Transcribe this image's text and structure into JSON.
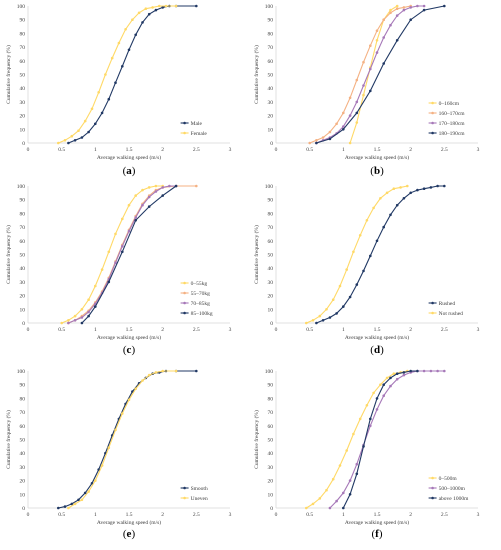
{
  "figure": {
    "panels": [
      {
        "label_prefix": "(",
        "label_letter": "a",
        "label_suffix": ")"
      },
      {
        "label_prefix": "(",
        "label_letter": "b",
        "label_suffix": ")"
      },
      {
        "label_prefix": "(",
        "label_letter": "c",
        "label_suffix": ")"
      },
      {
        "label_prefix": "(",
        "label_letter": "d",
        "label_suffix": ")"
      },
      {
        "label_prefix": "(",
        "label_letter": "e",
        "label_suffix": ")"
      },
      {
        "label_prefix": "(",
        "label_letter": "f",
        "label_suffix": ")"
      }
    ],
    "colors": {
      "navy": "#203864",
      "yellow": "#FFD966",
      "orange": "#F4B183",
      "purple": "#A678B8",
      "axis": "#d9d9d9",
      "text": "#404040"
    }
  },
  "chart_data": [
    {
      "type": "line",
      "xlabel": "Average walking speed (m/s)",
      "ylabel": "Cumulative frequency (%)",
      "xlim": [
        0,
        3
      ],
      "ylim": [
        0,
        100
      ],
      "xticks": [
        "0",
        "0.5",
        "1",
        "1.5",
        "2",
        "2.5",
        "3"
      ],
      "yticks": [
        "0",
        "10",
        "20",
        "30",
        "40",
        "50",
        "60",
        "70",
        "80",
        "90",
        "100"
      ],
      "legend_position": "bottom-right",
      "series": [
        {
          "name": "Male",
          "color": "#203864",
          "x": [
            0.6,
            0.7,
            0.8,
            0.9,
            1.0,
            1.1,
            1.2,
            1.3,
            1.4,
            1.5,
            1.6,
            1.7,
            1.8,
            1.9,
            2.0,
            2.1,
            2.2,
            2.5
          ],
          "y": [
            0,
            2,
            4,
            8,
            14,
            22,
            32,
            44,
            56,
            68,
            79,
            88,
            94,
            97,
            99,
            100,
            100,
            100
          ]
        },
        {
          "name": "Female",
          "color": "#FFD966",
          "x": [
            0.45,
            0.55,
            0.65,
            0.75,
            0.85,
            0.95,
            1.05,
            1.15,
            1.25,
            1.35,
            1.45,
            1.55,
            1.65,
            1.75,
            1.85,
            1.95,
            2.05,
            2.2
          ],
          "y": [
            0,
            2,
            5,
            9,
            16,
            25,
            37,
            50,
            62,
            73,
            83,
            90,
            95,
            98,
            99,
            100,
            100,
            100
          ]
        }
      ]
    },
    {
      "type": "line",
      "xlabel": "Average walking speed (m/s)",
      "ylabel": "Cumulative frequency (%)",
      "xlim": [
        0,
        3
      ],
      "ylim": [
        0,
        100
      ],
      "xticks": [
        "0",
        "0.5",
        "1",
        "1.5",
        "2",
        "2.5",
        "3"
      ],
      "yticks": [
        "0",
        "10",
        "20",
        "30",
        "40",
        "50",
        "60",
        "70",
        "80",
        "90",
        "100"
      ],
      "legend_position": "bottom-right",
      "series": [
        {
          "name": "0–160cm",
          "color": "#FFD966",
          "x": [
            1.1,
            1.2,
            1.3,
            1.4,
            1.5,
            1.6,
            1.7,
            1.8
          ],
          "y": [
            0,
            15,
            35,
            55,
            75,
            90,
            97,
            100
          ]
        },
        {
          "name": "160–170cm",
          "color": "#F4B183",
          "x": [
            0.5,
            0.6,
            0.7,
            0.8,
            0.9,
            1.0,
            1.1,
            1.2,
            1.3,
            1.4,
            1.5,
            1.6,
            1.7,
            1.8,
            1.9,
            2.0
          ],
          "y": [
            0,
            2,
            4,
            8,
            14,
            22,
            33,
            46,
            59,
            71,
            82,
            90,
            95,
            98,
            99,
            100
          ]
        },
        {
          "name": "170–180cm",
          "color": "#A678B8",
          "x": [
            0.6,
            0.7,
            0.8,
            0.9,
            1.0,
            1.1,
            1.2,
            1.3,
            1.4,
            1.5,
            1.6,
            1.7,
            1.8,
            1.9,
            2.0,
            2.1,
            2.2
          ],
          "y": [
            0,
            2,
            4,
            7,
            12,
            20,
            30,
            42,
            54,
            66,
            77,
            86,
            93,
            97,
            99,
            100,
            100
          ]
        },
        {
          "name": "180–190cm",
          "color": "#203864",
          "x": [
            0.6,
            0.8,
            1.0,
            1.2,
            1.4,
            1.6,
            1.8,
            2.0,
            2.2,
            2.5
          ],
          "y": [
            0,
            3,
            10,
            22,
            38,
            58,
            75,
            90,
            97,
            100
          ]
        }
      ]
    },
    {
      "type": "line",
      "xlabel": "Average walking speed (m/s)",
      "ylabel": "Cumulative frequency (%)",
      "xlim": [
        0,
        3
      ],
      "ylim": [
        0,
        100
      ],
      "xticks": [
        "0",
        "0.5",
        "1",
        "1.5",
        "2",
        "2.5",
        "3"
      ],
      "yticks": [
        "0",
        "10",
        "20",
        "30",
        "40",
        "50",
        "60",
        "70",
        "80",
        "90",
        "100"
      ],
      "legend_position": "bottom-right",
      "series": [
        {
          "name": "0–55kg",
          "color": "#FFD966",
          "x": [
            0.5,
            0.6,
            0.7,
            0.8,
            0.9,
            1.0,
            1.1,
            1.2,
            1.3,
            1.4,
            1.5,
            1.6,
            1.7,
            1.8,
            1.9,
            2.0
          ],
          "y": [
            0,
            2,
            5,
            10,
            17,
            27,
            39,
            52,
            65,
            76,
            86,
            93,
            97,
            99,
            100,
            100
          ]
        },
        {
          "name": "55–70kg",
          "color": "#F4B183",
          "x": [
            0.6,
            0.7,
            0.8,
            0.9,
            1.0,
            1.1,
            1.2,
            1.3,
            1.4,
            1.5,
            1.6,
            1.7,
            1.8,
            1.9,
            2.0,
            2.2,
            2.5
          ],
          "y": [
            0,
            2,
            5,
            9,
            15,
            23,
            33,
            45,
            57,
            68,
            78,
            87,
            93,
            97,
            99,
            100,
            100
          ]
        },
        {
          "name": "70–85kg",
          "color": "#A678B8",
          "x": [
            0.6,
            0.7,
            0.8,
            0.9,
            1.0,
            1.1,
            1.2,
            1.3,
            1.4,
            1.5,
            1.6,
            1.7,
            1.8,
            1.9,
            2.0,
            2.1,
            2.2
          ],
          "y": [
            0,
            2,
            4,
            8,
            14,
            22,
            32,
            44,
            56,
            67,
            77,
            86,
            92,
            96,
            99,
            100,
            100
          ]
        },
        {
          "name": "85–100kg",
          "color": "#203864",
          "x": [
            0.8,
            0.9,
            1.0,
            1.2,
            1.4,
            1.6,
            1.8,
            2.0,
            2.2
          ],
          "y": [
            0,
            5,
            12,
            30,
            52,
            75,
            85,
            93,
            100
          ]
        }
      ]
    },
    {
      "type": "line",
      "xlabel": "Average walking speed (m/s)",
      "ylabel": "Cumulative frequency (%)",
      "xlim": [
        0,
        3
      ],
      "ylim": [
        0,
        100
      ],
      "xticks": [
        "0",
        "0.5",
        "1",
        "1.5",
        "2",
        "2.5",
        "3"
      ],
      "yticks": [
        "0",
        "10",
        "20",
        "30",
        "40",
        "50",
        "60",
        "70",
        "80",
        "90",
        "100"
      ],
      "legend_position": "bottom-right",
      "series": [
        {
          "name": "Rushed",
          "color": "#203864",
          "x": [
            0.6,
            0.7,
            0.8,
            0.9,
            1.0,
            1.1,
            1.2,
            1.3,
            1.4,
            1.5,
            1.6,
            1.7,
            1.8,
            1.9,
            2.0,
            2.1,
            2.2,
            2.3,
            2.4,
            2.5
          ],
          "y": [
            0,
            2,
            4,
            7,
            12,
            19,
            28,
            38,
            49,
            60,
            70,
            79,
            86,
            91,
            95,
            97,
            98,
            99,
            100,
            100
          ]
        },
        {
          "name": "Not rushed",
          "color": "#FFD966",
          "x": [
            0.45,
            0.55,
            0.65,
            0.75,
            0.85,
            0.95,
            1.05,
            1.15,
            1.25,
            1.35,
            1.45,
            1.55,
            1.65,
            1.75,
            1.85,
            1.95
          ],
          "y": [
            0,
            2,
            5,
            10,
            17,
            27,
            39,
            52,
            64,
            75,
            84,
            91,
            95,
            98,
            99,
            100
          ]
        }
      ]
    },
    {
      "type": "line",
      "xlabel": "Average walking speed (m/s)",
      "ylabel": "Cumulative frequency (%)",
      "xlim": [
        0,
        3
      ],
      "ylim": [
        0,
        100
      ],
      "xticks": [
        "0",
        "0.5",
        "1",
        "1.5",
        "2",
        "2.5",
        "3"
      ],
      "yticks": [
        "0",
        "10",
        "20",
        "30",
        "40",
        "50",
        "60",
        "70",
        "80",
        "90",
        "100"
      ],
      "legend_position": "bottom-right",
      "series": [
        {
          "name": "Smooth",
          "color": "#203864",
          "x": [
            0.45,
            0.55,
            0.65,
            0.75,
            0.85,
            0.95,
            1.05,
            1.15,
            1.25,
            1.35,
            1.45,
            1.55,
            1.65,
            1.75,
            1.85,
            1.95,
            2.05,
            2.2,
            2.5
          ],
          "y": [
            0,
            1,
            3,
            6,
            11,
            18,
            28,
            40,
            53,
            65,
            76,
            85,
            91,
            95,
            98,
            99,
            100,
            100,
            100
          ]
        },
        {
          "name": "Uneven",
          "color": "#FFD966",
          "x": [
            0.6,
            0.7,
            0.8,
            0.9,
            1.0,
            1.1,
            1.2,
            1.3,
            1.4,
            1.5,
            1.6,
            1.7,
            1.8,
            1.9,
            2.0,
            2.2
          ],
          "y": [
            0,
            3,
            6,
            12,
            20,
            31,
            44,
            57,
            69,
            79,
            87,
            93,
            97,
            99,
            100,
            100
          ]
        }
      ]
    },
    {
      "type": "line",
      "xlabel": "Average walking speed (m/s)",
      "ylabel": "Cumulative frequency (%)",
      "xlim": [
        0,
        3
      ],
      "ylim": [
        0,
        100
      ],
      "xticks": [
        "0",
        "0.5",
        "1",
        "1.5",
        "2",
        "2.5",
        "3"
      ],
      "yticks": [
        "0",
        "10",
        "20",
        "30",
        "40",
        "50",
        "60",
        "70",
        "80",
        "90",
        "100"
      ],
      "legend_position": "bottom-right",
      "series": [
        {
          "name": "0–500m",
          "color": "#FFD966",
          "x": [
            0.45,
            0.55,
            0.65,
            0.75,
            0.85,
            0.95,
            1.05,
            1.15,
            1.25,
            1.35,
            1.45,
            1.55,
            1.65,
            1.75,
            1.85,
            1.95
          ],
          "y": [
            0,
            3,
            7,
            13,
            21,
            31,
            42,
            54,
            65,
            75,
            84,
            90,
            95,
            98,
            99,
            100
          ]
        },
        {
          "name": "500–1000m",
          "color": "#A678B8",
          "x": [
            0.8,
            0.9,
            1.0,
            1.1,
            1.2,
            1.3,
            1.4,
            1.5,
            1.6,
            1.7,
            1.8,
            1.9,
            2.0,
            2.1,
            2.2,
            2.3,
            2.4,
            2.5
          ],
          "y": [
            0,
            5,
            11,
            20,
            32,
            46,
            60,
            72,
            82,
            89,
            94,
            97,
            99,
            100,
            100,
            100,
            100,
            100
          ]
        },
        {
          "name": "above 1000m",
          "color": "#203864",
          "x": [
            1.0,
            1.1,
            1.2,
            1.3,
            1.4,
            1.5,
            1.6,
            1.7,
            1.8,
            1.9,
            2.0,
            2.1
          ],
          "y": [
            0,
            10,
            25,
            45,
            65,
            80,
            90,
            95,
            98,
            99,
            100,
            100
          ]
        }
      ]
    }
  ]
}
